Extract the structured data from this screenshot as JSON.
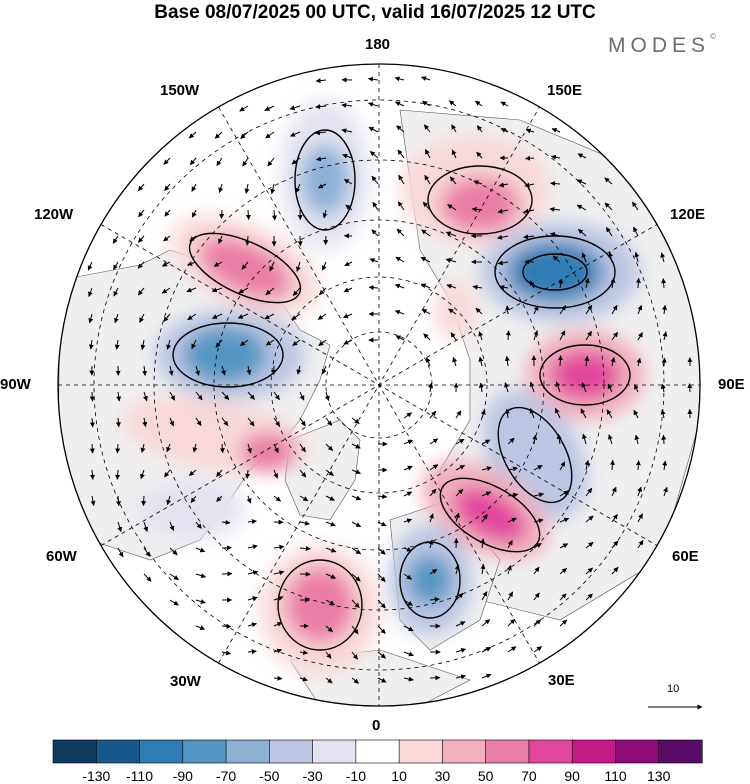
{
  "title": "Base 08/07/2025 00 UTC, valid 16/07/2025 12 UTC",
  "logo": {
    "text": "MODES",
    "mark": "©"
  },
  "longitude_labels": {
    "lon_180": "180",
    "lon_150e": "150E",
    "lon_120e": "120E",
    "lon_90e": "90E",
    "lon_60e": "60E",
    "lon_30e": "30E",
    "lon_0": "0",
    "lon_30w": "30W",
    "lon_60w": "60W",
    "lon_90w": "90W",
    "lon_120w": "120W",
    "lon_150w": "150W"
  },
  "reference_vector": {
    "label": "10"
  },
  "colorbar": {
    "labels": [
      "-130",
      "-110",
      "-90",
      "-70",
      "-50",
      "-30",
      "-10",
      "10",
      "30",
      "50",
      "70",
      "90",
      "110",
      "130"
    ],
    "colors": [
      "#0e3a5e",
      "#16598a",
      "#2f7bb3",
      "#5296c4",
      "#8db0d5",
      "#bcc6e2",
      "#e3e3f0",
      "#ffffff",
      "#f8d8d8",
      "#f2b0bd",
      "#eb7ea6",
      "#e2479b",
      "#c21b86",
      "#8d0e78",
      "#5a0a67"
    ]
  },
  "colors": {
    "land": "#efefef",
    "ocean": "#ffffff",
    "boundary": "#000000",
    "graticule": "#000000"
  }
}
